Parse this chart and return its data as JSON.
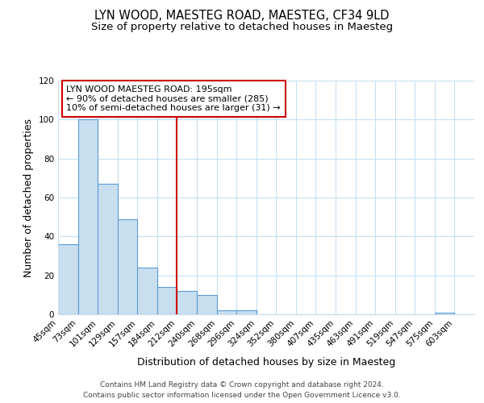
{
  "title": "LYN WOOD, MAESTEG ROAD, MAESTEG, CF34 9LD",
  "subtitle": "Size of property relative to detached houses in Maesteg",
  "xlabel": "Distribution of detached houses by size in Maesteg",
  "ylabel": "Number of detached properties",
  "categories": [
    "45sqm",
    "73sqm",
    "101sqm",
    "129sqm",
    "157sqm",
    "184sqm",
    "212sqm",
    "240sqm",
    "268sqm",
    "296sqm",
    "324sqm",
    "352sqm",
    "380sqm",
    "407sqm",
    "435sqm",
    "463sqm",
    "491sqm",
    "519sqm",
    "547sqm",
    "575sqm",
    "603sqm"
  ],
  "bar_heights": [
    36,
    100,
    67,
    49,
    24,
    14,
    12,
    10,
    2,
    2,
    0,
    0,
    0,
    0,
    0,
    0,
    0,
    0,
    0,
    1,
    0
  ],
  "bar_color": "#c8dff0",
  "bar_edge_color": "#5b9bd5",
  "vline_color": "#cc0000",
  "ylim": [
    0,
    120
  ],
  "yticks": [
    0,
    20,
    40,
    60,
    80,
    100,
    120
  ],
  "annotation_text": "LYN WOOD MAESTEG ROAD: 195sqm\n← 90% of detached houses are smaller (285)\n10% of semi-detached houses are larger (31) →",
  "annotation_box_color": "#ffffff",
  "annotation_box_edge_color": "#cc0000",
  "footer_line1": "Contains HM Land Registry data © Crown copyright and database right 2024.",
  "footer_line2": "Contains public sector information licensed under the Open Government Licence v3.0.",
  "background_color": "#ffffff",
  "grid_color": "#c8dff0",
  "title_fontsize": 10.5,
  "subtitle_fontsize": 9.5,
  "axis_label_fontsize": 9,
  "tick_fontsize": 7.5,
  "annotation_fontsize": 8,
  "footer_fontsize": 6.5
}
